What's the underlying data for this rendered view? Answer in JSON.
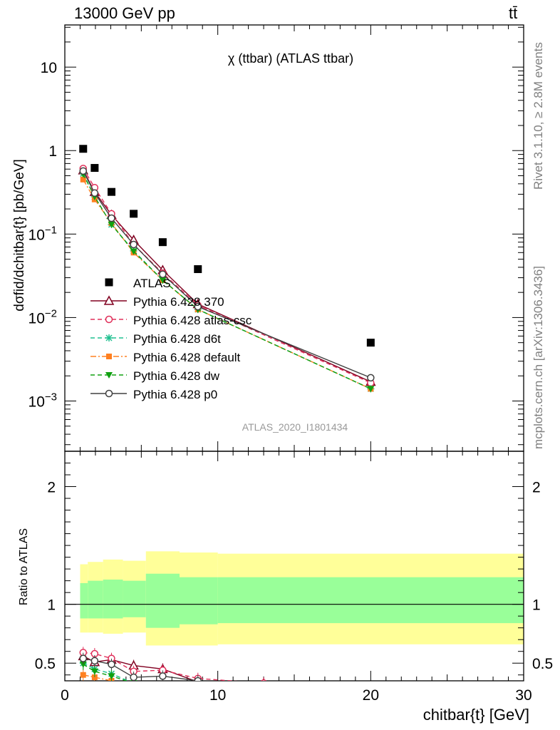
{
  "header": {
    "left": "13000 GeV pp",
    "right": "tt̄"
  },
  "side_labels": {
    "rivet": "Rivet 3.1.10, ≥ 2.8M events",
    "mcplots": "mcplots.cern.ch [arXiv:1306.3436]"
  },
  "colors": {
    "ATLAS": "#000000",
    "370": "#800020",
    "atlas-csc": "#e0305a",
    "d6t": "#20c090",
    "default": "#ff8020",
    "dw": "#10a010",
    "p0": "#404040",
    "band_outer": "#ffff99",
    "band_inner": "#99ff99"
  },
  "chart_data": [
    {
      "type": "line",
      "title": "χ (ttbar) (ATLAS ttbar)",
      "watermark": "ATLAS_2020_I1801434",
      "ylabel": "dσfid/dchitbar{t} [pb/GeV]",
      "yscale": "log",
      "ylim": [
        0.00025,
        32
      ],
      "xlim": [
        0,
        30
      ],
      "y_ticks": [
        {
          "v": 10,
          "label": "10"
        },
        {
          "v": 1,
          "label": "1"
        },
        {
          "v": 0.1,
          "label": "10^-1"
        },
        {
          "v": 0.01,
          "label": "10^-2"
        },
        {
          "v": 0.001,
          "label": "10^-3"
        }
      ],
      "legend_position": "lower-left",
      "data_series": {
        "name": "ATLAS",
        "x": [
          1.2,
          1.95,
          3.05,
          4.5,
          6.4,
          8.7,
          20
        ],
        "y": [
          1.05,
          0.62,
          0.32,
          0.175,
          0.08,
          0.038,
          0.005
        ]
      },
      "series": [
        {
          "key": "370",
          "name": "Pythia 6.428 370",
          "marker": "triangle-open",
          "dash": "solid",
          "x": [
            1.2,
            1.95,
            3.05,
            4.5,
            6.4,
            8.7,
            20
          ],
          "y": [
            0.58,
            0.32,
            0.17,
            0.085,
            0.037,
            0.0145,
            0.0017
          ]
        },
        {
          "key": "atlas-csc",
          "name": "Pythia 6.428 atlas-csc",
          "marker": "circle-open",
          "dash": "dashed",
          "x": [
            1.2,
            1.95,
            3.05,
            4.5,
            6.4,
            8.7,
            20
          ],
          "y": [
            0.61,
            0.36,
            0.175,
            0.075,
            0.034,
            0.014,
            0.00165
          ]
        },
        {
          "key": "d6t",
          "name": "Pythia 6.428 d6t",
          "marker": "star",
          "dash": "dashed",
          "x": [
            1.2,
            1.95,
            3.05,
            4.5,
            6.4,
            8.7,
            20
          ],
          "y": [
            0.53,
            0.28,
            0.13,
            0.063,
            0.028,
            0.0125,
            0.0014
          ]
        },
        {
          "key": "default",
          "name": "Pythia 6.428 default",
          "marker": "square",
          "dash": "dashdot",
          "x": [
            1.2,
            1.95,
            3.05,
            4.5,
            6.4,
            8.7,
            20
          ],
          "y": [
            0.45,
            0.26,
            0.135,
            0.06,
            0.028,
            0.0125,
            0.0014
          ]
        },
        {
          "key": "dw",
          "name": "Pythia 6.428 dw",
          "marker": "triangle-down",
          "dash": "dashed",
          "x": [
            1.2,
            1.95,
            3.05,
            4.5,
            6.4,
            8.7,
            20
          ],
          "y": [
            0.52,
            0.28,
            0.13,
            0.062,
            0.028,
            0.0125,
            0.0014
          ]
        },
        {
          "key": "p0",
          "name": "Pythia 6.428 p0",
          "marker": "circle-open",
          "dash": "solid",
          "x": [
            1.2,
            1.95,
            3.05,
            4.5,
            6.4,
            8.7,
            20
          ],
          "y": [
            0.57,
            0.31,
            0.155,
            0.075,
            0.033,
            0.0135,
            0.0019
          ]
        }
      ]
    },
    {
      "type": "line",
      "ylabel": "Ratio to ATLAS",
      "xlabel": "chitbar{t} [GeV]",
      "ylim": [
        0.35,
        2.3
      ],
      "xlim": [
        0,
        30
      ],
      "x_ticks": [
        0,
        10,
        20,
        30
      ],
      "y_ticks": [
        0.5,
        1,
        2
      ],
      "bands": {
        "edges": [
          1,
          1.5,
          2.5,
          3.8,
          5.3,
          7.5,
          10,
          30
        ],
        "outer_lo": [
          0.76,
          0.76,
          0.75,
          0.76,
          0.65,
          0.65,
          0.66
        ],
        "outer_hi": [
          1.34,
          1.36,
          1.38,
          1.37,
          1.45,
          1.44,
          1.43
        ],
        "inner_lo": [
          0.88,
          0.88,
          0.88,
          0.89,
          0.8,
          0.83,
          0.84
        ],
        "inner_hi": [
          1.18,
          1.2,
          1.21,
          1.2,
          1.26,
          1.23,
          1.23
        ]
      },
      "ratios": {
        "370": {
          "x": [
            1.2,
            1.95,
            3.05,
            4.5,
            6.4,
            8.7,
            13
          ],
          "y": [
            0.56,
            0.51,
            0.53,
            0.48,
            0.45,
            0.34,
            0.33
          ]
        },
        "atlas-csc": {
          "x": [
            1.2,
            1.95,
            3.05,
            4.5,
            6.4,
            8.7,
            13
          ],
          "y": [
            0.59,
            0.58,
            0.54,
            0.43,
            0.44,
            0.37,
            0.33
          ]
        },
        "d6t": {
          "x": [
            1.2,
            1.95,
            3.05,
            4.5
          ],
          "y": [
            0.5,
            0.45,
            0.41,
            0.33
          ]
        },
        "default": {
          "x": [
            1.2,
            1.95,
            3.05
          ],
          "y": [
            0.4,
            0.38,
            0.35
          ]
        },
        "dw": {
          "x": [
            1.2,
            1.95,
            3.05,
            4.5
          ],
          "y": [
            0.49,
            0.43,
            0.39,
            0.33
          ]
        },
        "p0": {
          "x": [
            1.2,
            1.95,
            3.05,
            4.5,
            6.4,
            8.7
          ],
          "y": [
            0.54,
            0.52,
            0.49,
            0.38,
            0.39,
            0.35
          ]
        }
      }
    }
  ]
}
